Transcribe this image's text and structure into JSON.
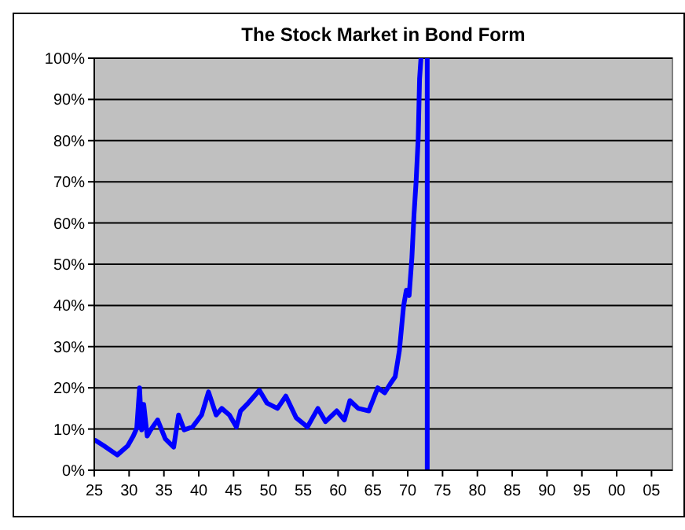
{
  "chart_data": {
    "type": "line",
    "title": "The Stock Market in Bond Form",
    "series": [
      {
        "color": "#0000ff",
        "x": [
          1925.2,
          1926.4,
          1928.3,
          1929.8,
          1930.6,
          1931.1,
          1931.5,
          1931.8,
          1932.1,
          1932.6,
          1933.1,
          1934.1,
          1935.2,
          1936.4,
          1937.1,
          1937.9,
          1939.1,
          1940.4,
          1941.4,
          1942.5,
          1943.3,
          1944.4,
          1945.4,
          1946,
          1947.1,
          1948.7,
          1949.8,
          1951.3,
          1952.5,
          1954,
          1955.6,
          1957.1,
          1958.2,
          1959.8,
          1960.9,
          1961.7,
          1962.9,
          1964.4,
          1965.7,
          1966.7,
          1967.5,
          1968.2,
          1968.8,
          1969.4,
          1969.8,
          1970.2,
          1970.6,
          1970.9,
          1971.2,
          1971.5,
          1971.7,
          1971.9,
          1972.3,
          1972.8,
          1972.8
        ],
        "values": [
          7.2,
          5.9,
          3.7,
          5.9,
          8.3,
          10.2,
          20,
          9.8,
          16,
          8.3,
          9.8,
          12.2,
          7.6,
          5.6,
          13.4,
          9.8,
          10.5,
          13.4,
          19,
          13.4,
          15,
          13.4,
          10.5,
          14.4,
          16.3,
          19.4,
          16.3,
          15,
          18,
          12.7,
          10.5,
          15,
          11.8,
          14.4,
          12.2,
          16.9,
          15,
          14.4,
          20,
          18.8,
          21,
          22.7,
          29,
          39.8,
          43.7,
          42.4,
          51.6,
          62,
          70,
          80.4,
          95,
          100,
          null,
          100,
          0
        ]
      }
    ],
    "xlim": [
      1925,
      2008
    ],
    "ylim": [
      0,
      100
    ],
    "xticks": [
      {
        "value": 1925,
        "label": "25"
      },
      {
        "value": 1930,
        "label": "30"
      },
      {
        "value": 1935,
        "label": "35"
      },
      {
        "value": 1940,
        "label": "40"
      },
      {
        "value": 1945,
        "label": "45"
      },
      {
        "value": 1950,
        "label": "50"
      },
      {
        "value": 1955,
        "label": "55"
      },
      {
        "value": 1960,
        "label": "60"
      },
      {
        "value": 1965,
        "label": "65"
      },
      {
        "value": 1970,
        "label": "70"
      },
      {
        "value": 1975,
        "label": "75"
      },
      {
        "value": 1980,
        "label": "80"
      },
      {
        "value": 1985,
        "label": "85"
      },
      {
        "value": 1990,
        "label": "90"
      },
      {
        "value": 1995,
        "label": "95"
      },
      {
        "value": 2000,
        "label": "00"
      },
      {
        "value": 2005,
        "label": "05"
      }
    ],
    "yticks": [
      {
        "value": 0,
        "label": "0%"
      },
      {
        "value": 10,
        "label": "10%"
      },
      {
        "value": 20,
        "label": "20%"
      },
      {
        "value": 30,
        "label": "30%"
      },
      {
        "value": 40,
        "label": "40%"
      },
      {
        "value": 50,
        "label": "50%"
      },
      {
        "value": 60,
        "label": "60%"
      },
      {
        "value": 70,
        "label": "70%"
      },
      {
        "value": 80,
        "label": "80%"
      },
      {
        "value": 90,
        "label": "90%"
      },
      {
        "value": 100,
        "label": "100%"
      }
    ],
    "grid": "y",
    "line_style": "solid",
    "marker": "none"
  }
}
